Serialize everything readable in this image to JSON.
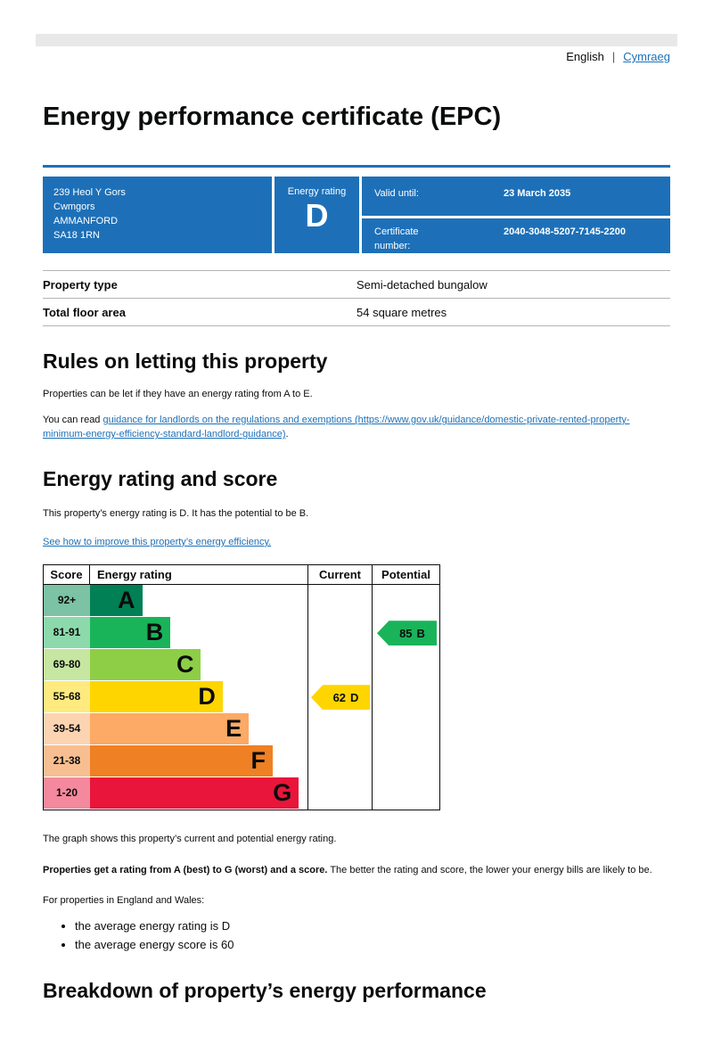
{
  "colors": {
    "govuk_blue": "#1d70b8",
    "text": "#0b0c0c",
    "border_gray": "#b1b4b6",
    "topbar_gray": "#e8e8e8"
  },
  "header": {
    "language_current": "English",
    "language_separator": "|",
    "language_link": "Cymraeg",
    "page_title": "Energy performance certificate (EPC)"
  },
  "summary_panel": {
    "address_lines": [
      "239 Heol Y Gors",
      "Cwmgors",
      "AMMANFORD",
      "SA18 1RN"
    ],
    "rating_label": "Energy rating",
    "rating_value": "D",
    "valid_until_label": "Valid until:",
    "valid_until_value": "23 March 2035",
    "certificate_label": "Certificate number:",
    "certificate_value": "2040-3048-5207-7145-2200"
  },
  "property_details": {
    "rows": [
      {
        "label": "Property type",
        "value": "Semi-detached bungalow"
      },
      {
        "label": "Total floor area",
        "value": "54 square metres"
      }
    ]
  },
  "rules_section": {
    "heading": "Rules on letting this property",
    "intro": "Properties can be let if they have an energy rating from A to E.",
    "read_prefix": "You can read ",
    "guidance_link": "guidance for landlords on the regulations and exemptions (https://www.gov.uk/guidance/domestic-private-rented-property-minimum-energy-efficiency-standard-landlord-guidance)",
    "read_suffix": "."
  },
  "rating_section": {
    "heading": "Energy rating and score",
    "intro": "This property’s energy rating is D. It has the potential to be B.",
    "improve_link": "See how to improve this property’s energy efficiency."
  },
  "chart_data": {
    "type": "epc-rating-bands",
    "headers": {
      "score": "Score",
      "rating": "Energy rating",
      "current": "Current",
      "potential": "Potential"
    },
    "bands": [
      {
        "score": "92+",
        "letter": "A",
        "color": "#008054",
        "tint": "#7cc2a4",
        "width_pct": 24
      },
      {
        "score": "81-91",
        "letter": "B",
        "color": "#19b459",
        "tint": "#8cd9ac",
        "width_pct": 37
      },
      {
        "score": "69-80",
        "letter": "C",
        "color": "#8dce46",
        "tint": "#c6e6a2",
        "width_pct": 51
      },
      {
        "score": "55-68",
        "letter": "D",
        "color": "#ffd500",
        "tint": "#ffea80",
        "width_pct": 61
      },
      {
        "score": "39-54",
        "letter": "E",
        "color": "#fcaa65",
        "tint": "#fdd4b2",
        "width_pct": 73
      },
      {
        "score": "21-38",
        "letter": "F",
        "color": "#ef8023",
        "tint": "#f7bf91",
        "width_pct": 84
      },
      {
        "score": "1-20",
        "letter": "G",
        "color": "#e9153b",
        "tint": "#f4899d",
        "width_pct": 96
      }
    ],
    "current": {
      "score": "62",
      "letter": "D",
      "color": "#ffd500"
    },
    "potential": {
      "score": "85",
      "letter": "B",
      "color": "#19b459"
    }
  },
  "chart_notes": {
    "graph_note": "The graph shows this property’s current and potential energy rating.",
    "rating_bold": "Properties get a rating from A (best) to G (worst) and a score.",
    "rating_rest": " The better the rating and score, the lower your energy bills are likely to be.",
    "regions_intro": "For properties in England and Wales:",
    "averages": [
      "the average energy rating is D",
      "the average energy score is 60"
    ]
  },
  "breakdown": {
    "heading": "Breakdown of property’s energy performance"
  }
}
